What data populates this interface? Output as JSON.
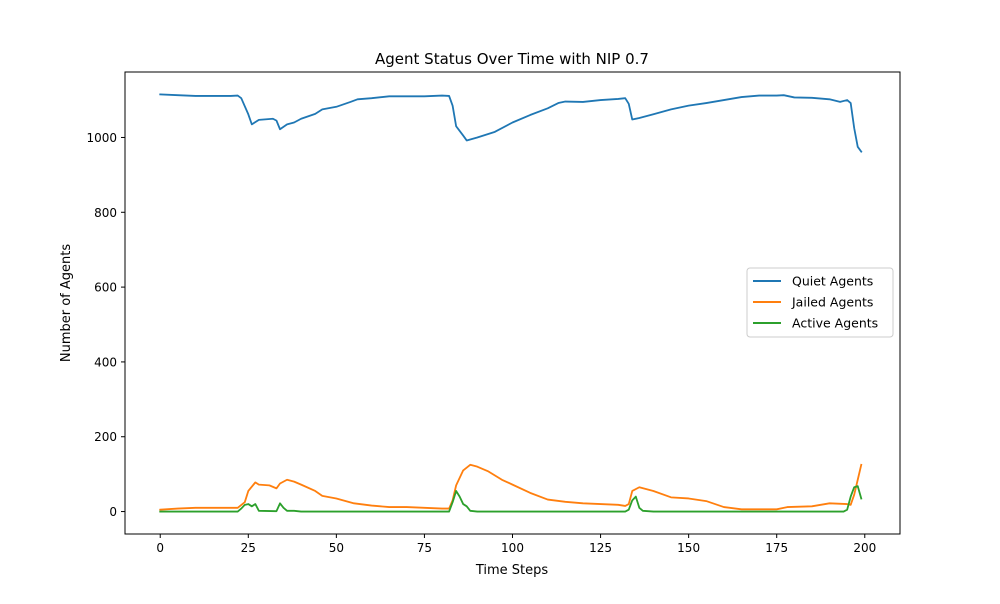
{
  "chart_data": {
    "type": "line",
    "title": "Agent Status Over Time with NIP 0.7",
    "xlabel": "Time Steps",
    "ylabel": "Number of Agents",
    "xlim": [
      -10,
      210
    ],
    "ylim": [
      -60,
      1175
    ],
    "xticks": [
      0,
      25,
      50,
      75,
      100,
      125,
      150,
      175,
      200
    ],
    "yticks": [
      0,
      200,
      400,
      600,
      800,
      1000
    ],
    "grid": false,
    "legend_position": "center-right",
    "series": [
      {
        "name": "Quiet Agents",
        "color": "#1f77b4",
        "points": [
          [
            0,
            1115
          ],
          [
            5,
            1113
          ],
          [
            10,
            1111
          ],
          [
            15,
            1111
          ],
          [
            20,
            1111
          ],
          [
            22,
            1112
          ],
          [
            23,
            1105
          ],
          [
            25,
            1062
          ],
          [
            26,
            1035
          ],
          [
            28,
            1047
          ],
          [
            32,
            1050
          ],
          [
            33,
            1045
          ],
          [
            34,
            1022
          ],
          [
            36,
            1035
          ],
          [
            38,
            1040
          ],
          [
            40,
            1050
          ],
          [
            44,
            1063
          ],
          [
            46,
            1075
          ],
          [
            50,
            1082
          ],
          [
            54,
            1095
          ],
          [
            56,
            1102
          ],
          [
            60,
            1105
          ],
          [
            65,
            1110
          ],
          [
            70,
            1110
          ],
          [
            75,
            1110
          ],
          [
            80,
            1112
          ],
          [
            82,
            1111
          ],
          [
            83,
            1085
          ],
          [
            84,
            1030
          ],
          [
            86,
            1005
          ],
          [
            87,
            992
          ],
          [
            90,
            1000
          ],
          [
            95,
            1015
          ],
          [
            100,
            1040
          ],
          [
            105,
            1060
          ],
          [
            110,
            1078
          ],
          [
            113,
            1092
          ],
          [
            115,
            1096
          ],
          [
            120,
            1095
          ],
          [
            125,
            1100
          ],
          [
            130,
            1103
          ],
          [
            132,
            1105
          ],
          [
            133,
            1090
          ],
          [
            134,
            1048
          ],
          [
            136,
            1052
          ],
          [
            140,
            1062
          ],
          [
            145,
            1075
          ],
          [
            150,
            1085
          ],
          [
            155,
            1092
          ],
          [
            160,
            1100
          ],
          [
            165,
            1108
          ],
          [
            170,
            1112
          ],
          [
            175,
            1112
          ],
          [
            177,
            1113
          ],
          [
            180,
            1107
          ],
          [
            185,
            1106
          ],
          [
            190,
            1102
          ],
          [
            193,
            1095
          ],
          [
            195,
            1100
          ],
          [
            196,
            1092
          ],
          [
            197,
            1025
          ],
          [
            198,
            975
          ],
          [
            199,
            962
          ]
        ]
      },
      {
        "name": "Jailed Agents",
        "color": "#ff7f0e",
        "points": [
          [
            0,
            5
          ],
          [
            5,
            8
          ],
          [
            10,
            10
          ],
          [
            15,
            10
          ],
          [
            20,
            10
          ],
          [
            22,
            10
          ],
          [
            24,
            25
          ],
          [
            25,
            55
          ],
          [
            27,
            78
          ],
          [
            28,
            72
          ],
          [
            31,
            70
          ],
          [
            33,
            62
          ],
          [
            34,
            75
          ],
          [
            36,
            85
          ],
          [
            38,
            80
          ],
          [
            40,
            72
          ],
          [
            44,
            55
          ],
          [
            46,
            42
          ],
          [
            50,
            35
          ],
          [
            55,
            22
          ],
          [
            60,
            16
          ],
          [
            65,
            12
          ],
          [
            70,
            12
          ],
          [
            75,
            10
          ],
          [
            80,
            8
          ],
          [
            82,
            8
          ],
          [
            83,
            30
          ],
          [
            84,
            70
          ],
          [
            86,
            110
          ],
          [
            88,
            125
          ],
          [
            90,
            120
          ],
          [
            93,
            108
          ],
          [
            97,
            85
          ],
          [
            100,
            72
          ],
          [
            105,
            50
          ],
          [
            110,
            32
          ],
          [
            115,
            26
          ],
          [
            120,
            22
          ],
          [
            125,
            20
          ],
          [
            130,
            18
          ],
          [
            132,
            15
          ],
          [
            133,
            20
          ],
          [
            134,
            55
          ],
          [
            136,
            65
          ],
          [
            140,
            55
          ],
          [
            145,
            38
          ],
          [
            150,
            35
          ],
          [
            155,
            28
          ],
          [
            160,
            12
          ],
          [
            165,
            6
          ],
          [
            170,
            6
          ],
          [
            175,
            6
          ],
          [
            178,
            12
          ],
          [
            185,
            14
          ],
          [
            190,
            22
          ],
          [
            195,
            20
          ],
          [
            196,
            18
          ],
          [
            197,
            45
          ],
          [
            198,
            85
          ],
          [
            199,
            125
          ]
        ]
      },
      {
        "name": "Active Agents",
        "color": "#2ca02c",
        "points": [
          [
            0,
            0
          ],
          [
            10,
            0
          ],
          [
            20,
            0
          ],
          [
            22,
            0
          ],
          [
            23,
            8
          ],
          [
            24,
            18
          ],
          [
            25,
            20
          ],
          [
            26,
            14
          ],
          [
            27,
            20
          ],
          [
            28,
            2
          ],
          [
            33,
            1
          ],
          [
            34,
            22
          ],
          [
            35,
            10
          ],
          [
            36,
            2
          ],
          [
            38,
            2
          ],
          [
            40,
            0
          ],
          [
            50,
            0
          ],
          [
            60,
            0
          ],
          [
            70,
            0
          ],
          [
            80,
            0
          ],
          [
            82,
            0
          ],
          [
            83,
            25
          ],
          [
            84,
            55
          ],
          [
            85,
            40
          ],
          [
            86,
            20
          ],
          [
            87,
            14
          ],
          [
            88,
            2
          ],
          [
            90,
            0
          ],
          [
            100,
            0
          ],
          [
            110,
            0
          ],
          [
            120,
            0
          ],
          [
            130,
            0
          ],
          [
            132,
            0
          ],
          [
            133,
            5
          ],
          [
            134,
            30
          ],
          [
            135,
            40
          ],
          [
            136,
            10
          ],
          [
            137,
            2
          ],
          [
            140,
            0
          ],
          [
            150,
            0
          ],
          [
            160,
            0
          ],
          [
            170,
            0
          ],
          [
            180,
            0
          ],
          [
            190,
            0
          ],
          [
            194,
            0
          ],
          [
            195,
            5
          ],
          [
            196,
            40
          ],
          [
            197,
            65
          ],
          [
            198,
            68
          ],
          [
            199,
            35
          ]
        ]
      }
    ]
  }
}
